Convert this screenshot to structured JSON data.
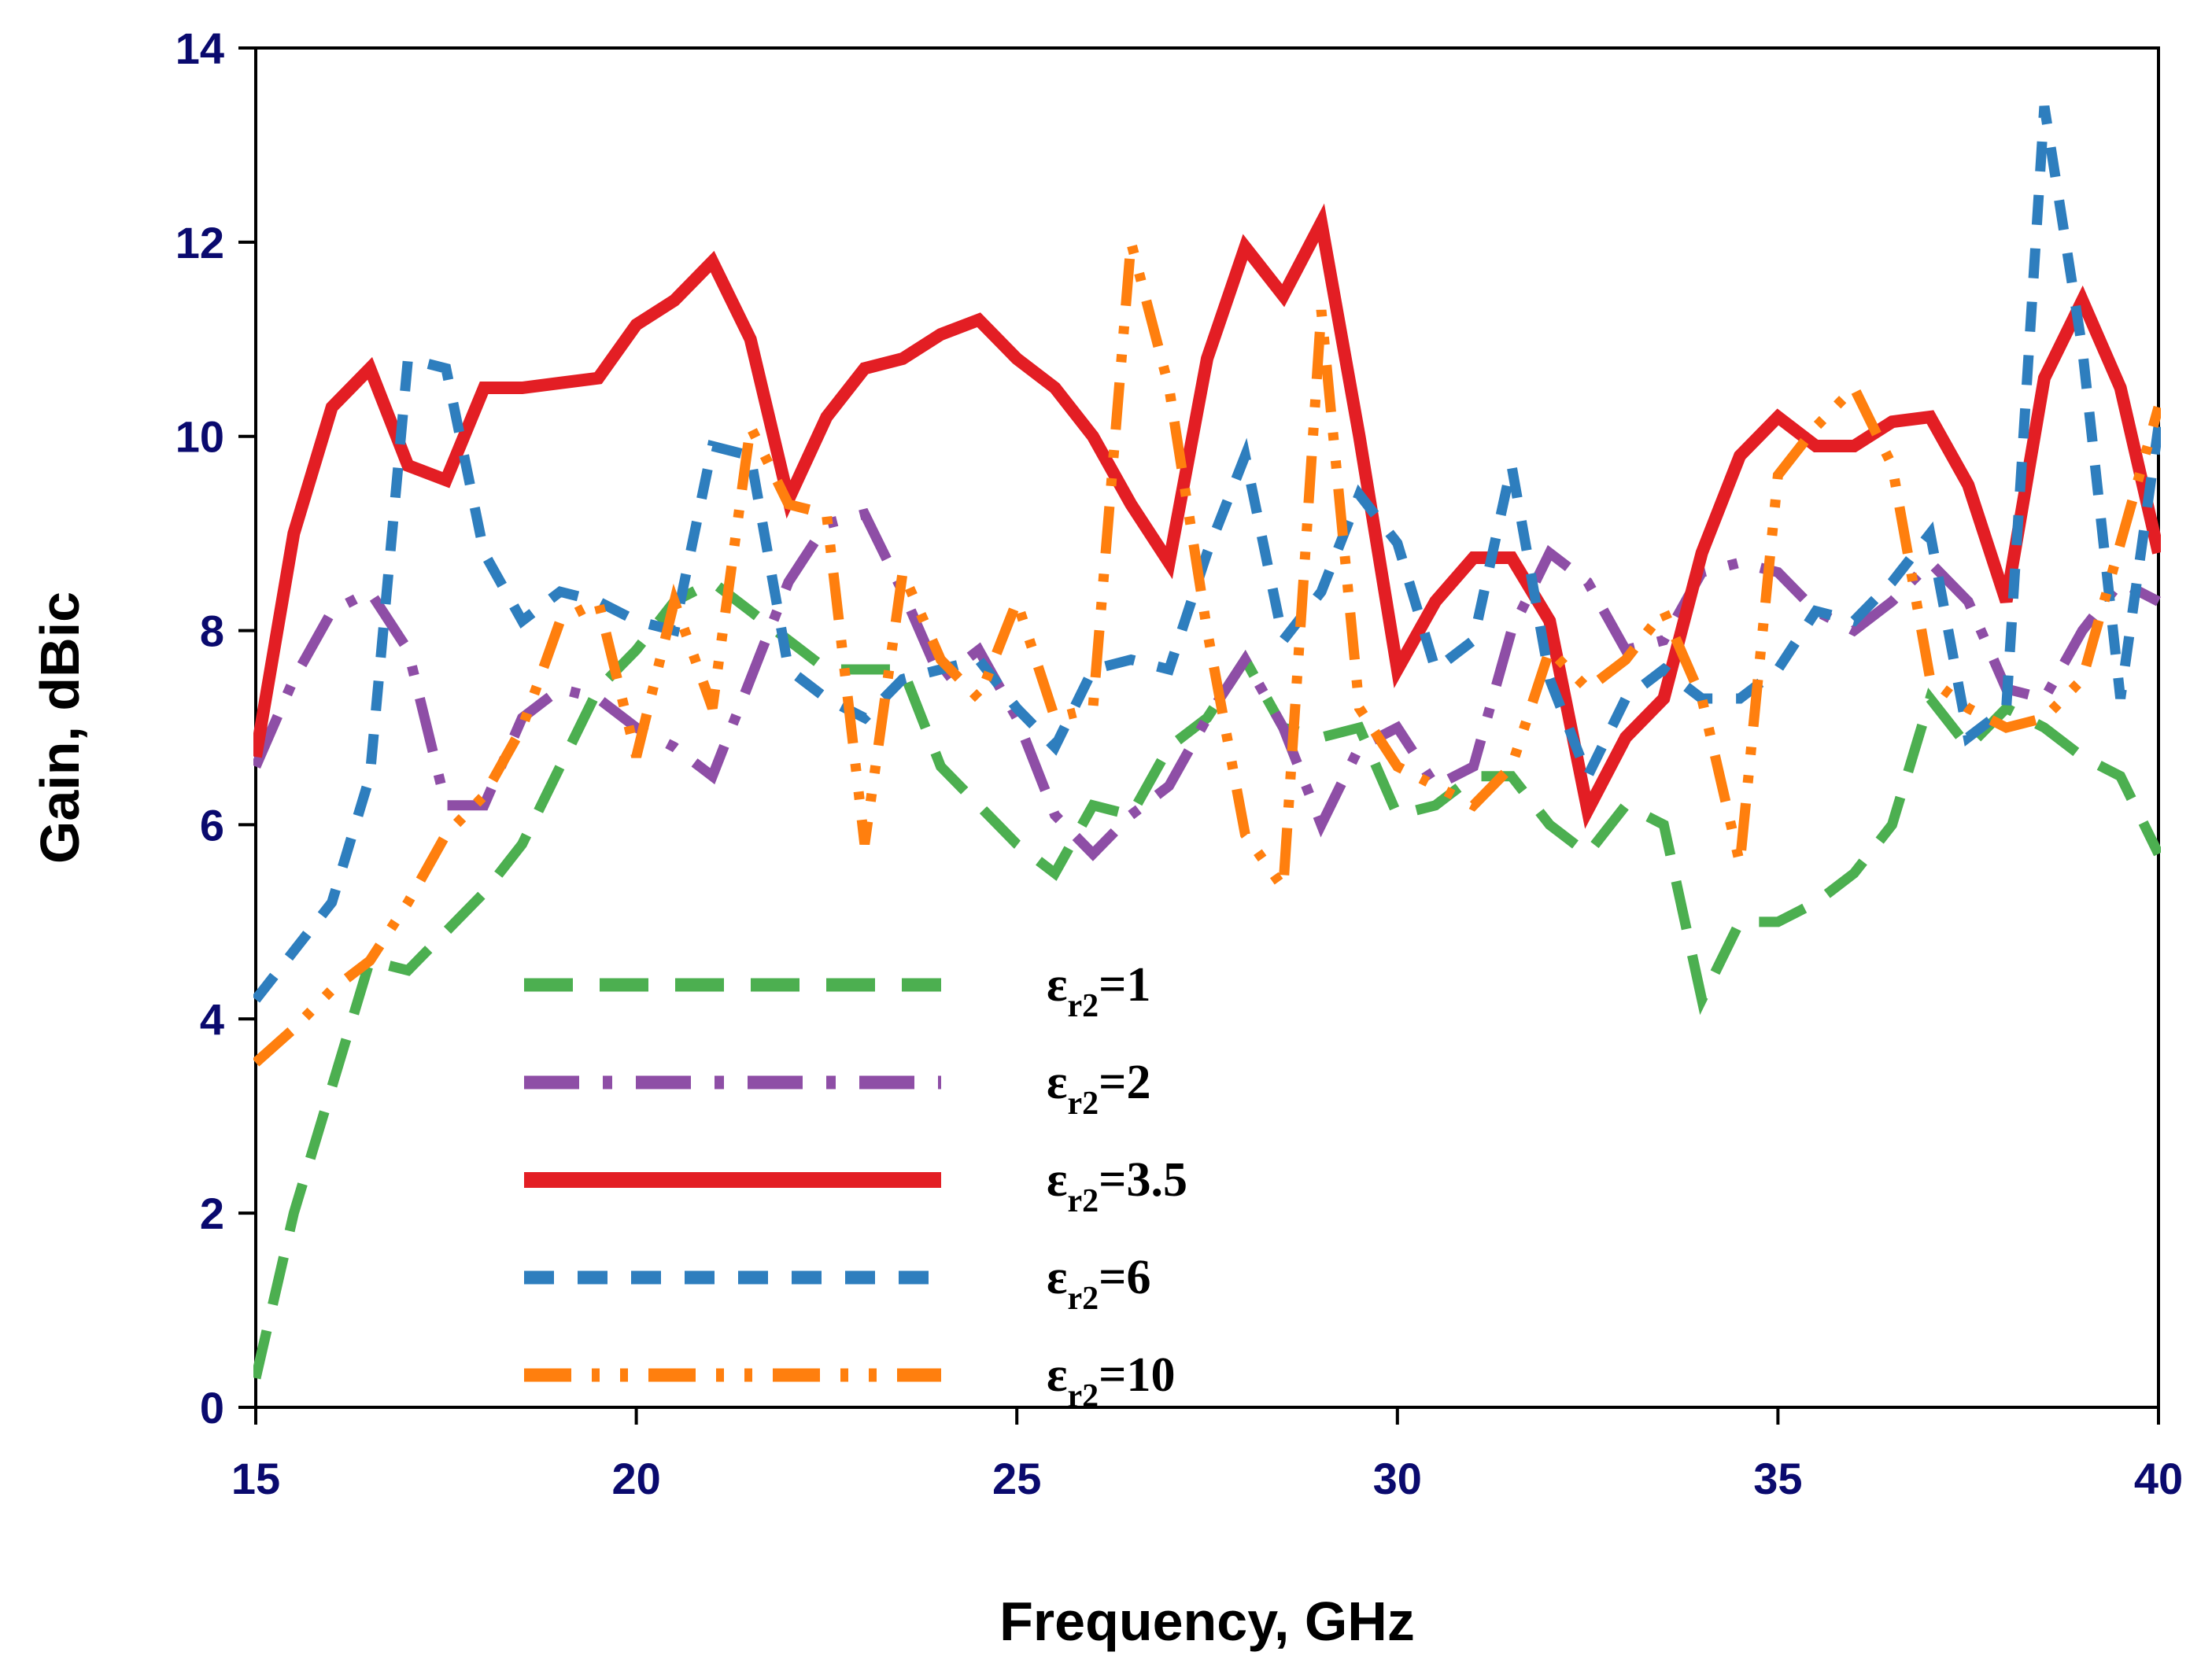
{
  "chart_data": {
    "type": "line",
    "title": "",
    "xlabel": "Frequency, GHz",
    "ylabel": "Gain, dBic",
    "xlim": [
      15,
      40
    ],
    "ylim": [
      0,
      14
    ],
    "xticks": [
      15,
      20,
      25,
      30,
      35,
      40
    ],
    "yticks": [
      0,
      2,
      4,
      6,
      8,
      10,
      12,
      14
    ],
    "grid": false,
    "legend_position": "lower-center",
    "x": [
      15,
      15.5,
      16,
      16.5,
      17,
      17.5,
      18,
      18.5,
      19,
      19.5,
      20,
      20.5,
      21,
      21.5,
      22,
      22.5,
      23,
      23.5,
      24,
      24.5,
      25,
      25.5,
      26,
      26.5,
      27,
      27.5,
      28,
      28.5,
      29,
      29.5,
      30,
      30.5,
      31,
      31.5,
      32,
      32.5,
      33,
      33.5,
      34,
      34.5,
      35,
      35.5,
      36,
      36.5,
      37,
      37.5,
      38,
      38.5,
      39,
      39.5,
      40
    ],
    "series": [
      {
        "name": "εr2=1",
        "legend_symbol": "ε",
        "legend_sub": "r2",
        "legend_value": "=1",
        "color": "#4caf50",
        "dash": "long-dash",
        "values": [
          0.3,
          2.0,
          3.3,
          4.6,
          4.5,
          4.9,
          5.3,
          5.8,
          6.6,
          7.4,
          7.8,
          8.3,
          8.5,
          8.2,
          7.9,
          7.6,
          7.6,
          7.6,
          6.6,
          6.2,
          5.8,
          5.5,
          6.2,
          6.1,
          6.8,
          7.1,
          7.7,
          7.0,
          6.9,
          7.0,
          6.1,
          6.2,
          6.5,
          6.5,
          6.0,
          5.7,
          6.2,
          6.0,
          4.2,
          5.0,
          5.0,
          5.2,
          5.5,
          6.0,
          7.3,
          6.8,
          7.2,
          7.0,
          6.7,
          6.5,
          5.7
        ]
      },
      {
        "name": "εr2=2",
        "legend_symbol": "ε",
        "legend_sub": "r2",
        "legend_value": "=2",
        "color": "#8e4ea6",
        "dash": "dash-dot",
        "values": [
          6.6,
          7.5,
          8.2,
          8.4,
          7.8,
          6.2,
          6.2,
          7.1,
          7.4,
          7.3,
          7.0,
          6.8,
          6.5,
          7.5,
          8.5,
          9.1,
          9.2,
          8.4,
          7.5,
          7.8,
          7.1,
          6.1,
          5.7,
          6.1,
          6.4,
          7.1,
          7.7,
          7.0,
          6.0,
          6.8,
          7.0,
          6.4,
          6.6,
          8.0,
          8.8,
          8.5,
          7.8,
          7.9,
          8.6,
          8.7,
          8.6,
          8.2,
          8.0,
          8.3,
          8.7,
          8.3,
          7.4,
          7.3,
          8.0,
          8.5,
          8.3
        ]
      },
      {
        "name": "εr2=3.5",
        "legend_symbol": "ε",
        "legend_sub": "r2",
        "legend_value": "=3.5",
        "color": "#e31e24",
        "dash": "solid",
        "values": [
          6.7,
          9.0,
          10.3,
          10.7,
          9.7,
          9.55,
          10.5,
          10.5,
          10.55,
          10.6,
          11.15,
          11.4,
          11.8,
          11.0,
          9.35,
          10.2,
          10.7,
          10.8,
          11.05,
          11.2,
          10.8,
          10.5,
          10.0,
          9.3,
          8.7,
          10.8,
          11.95,
          11.45,
          12.2,
          10.0,
          7.6,
          8.3,
          8.75,
          8.75,
          8.1,
          6.15,
          6.9,
          7.3,
          8.8,
          9.8,
          10.2,
          9.9,
          9.9,
          10.15,
          10.2,
          9.5,
          8.3,
          10.6,
          11.4,
          10.5,
          8.8
        ]
      },
      {
        "name": "εr2=6",
        "legend_symbol": "ε",
        "legend_sub": "r2",
        "legend_value": "=6",
        "color": "#2e7ebe",
        "dash": "short-dash",
        "values": [
          4.2,
          4.7,
          5.2,
          6.5,
          10.8,
          10.7,
          8.8,
          8.1,
          8.4,
          8.3,
          8.1,
          8.0,
          9.9,
          9.8,
          7.6,
          7.3,
          7.1,
          7.5,
          7.6,
          7.7,
          7.2,
          6.8,
          7.6,
          7.7,
          7.6,
          8.8,
          9.8,
          7.9,
          8.4,
          9.4,
          8.9,
          7.6,
          7.9,
          9.7,
          7.5,
          6.5,
          7.3,
          7.6,
          7.3,
          7.3,
          7.6,
          8.2,
          8.1,
          8.5,
          9.0,
          6.9,
          7.2,
          13.4,
          10.9,
          7.3,
          10.1
        ]
      },
      {
        "name": "εr2=10",
        "legend_symbol": "ε",
        "legend_sub": "r2",
        "legend_value": "=10",
        "color": "#ff7f0e",
        "dash": "dash-dot-dot",
        "values": [
          3.55,
          3.9,
          4.3,
          4.6,
          5.2,
          5.9,
          6.3,
          7.0,
          8.1,
          8.3,
          6.7,
          8.3,
          7.2,
          10.1,
          9.3,
          9.2,
          5.8,
          8.6,
          7.7,
          7.3,
          8.3,
          7.1,
          7.2,
          12.0,
          10.5,
          8.0,
          5.9,
          5.35,
          11.3,
          7.2,
          6.6,
          6.4,
          6.2,
          6.6,
          7.8,
          7.4,
          7.7,
          8.2,
          7.3,
          5.6,
          9.6,
          10.1,
          10.5,
          9.7,
          7.5,
          7.2,
          7.0,
          7.1,
          7.5,
          8.9,
          10.3
        ]
      }
    ]
  }
}
